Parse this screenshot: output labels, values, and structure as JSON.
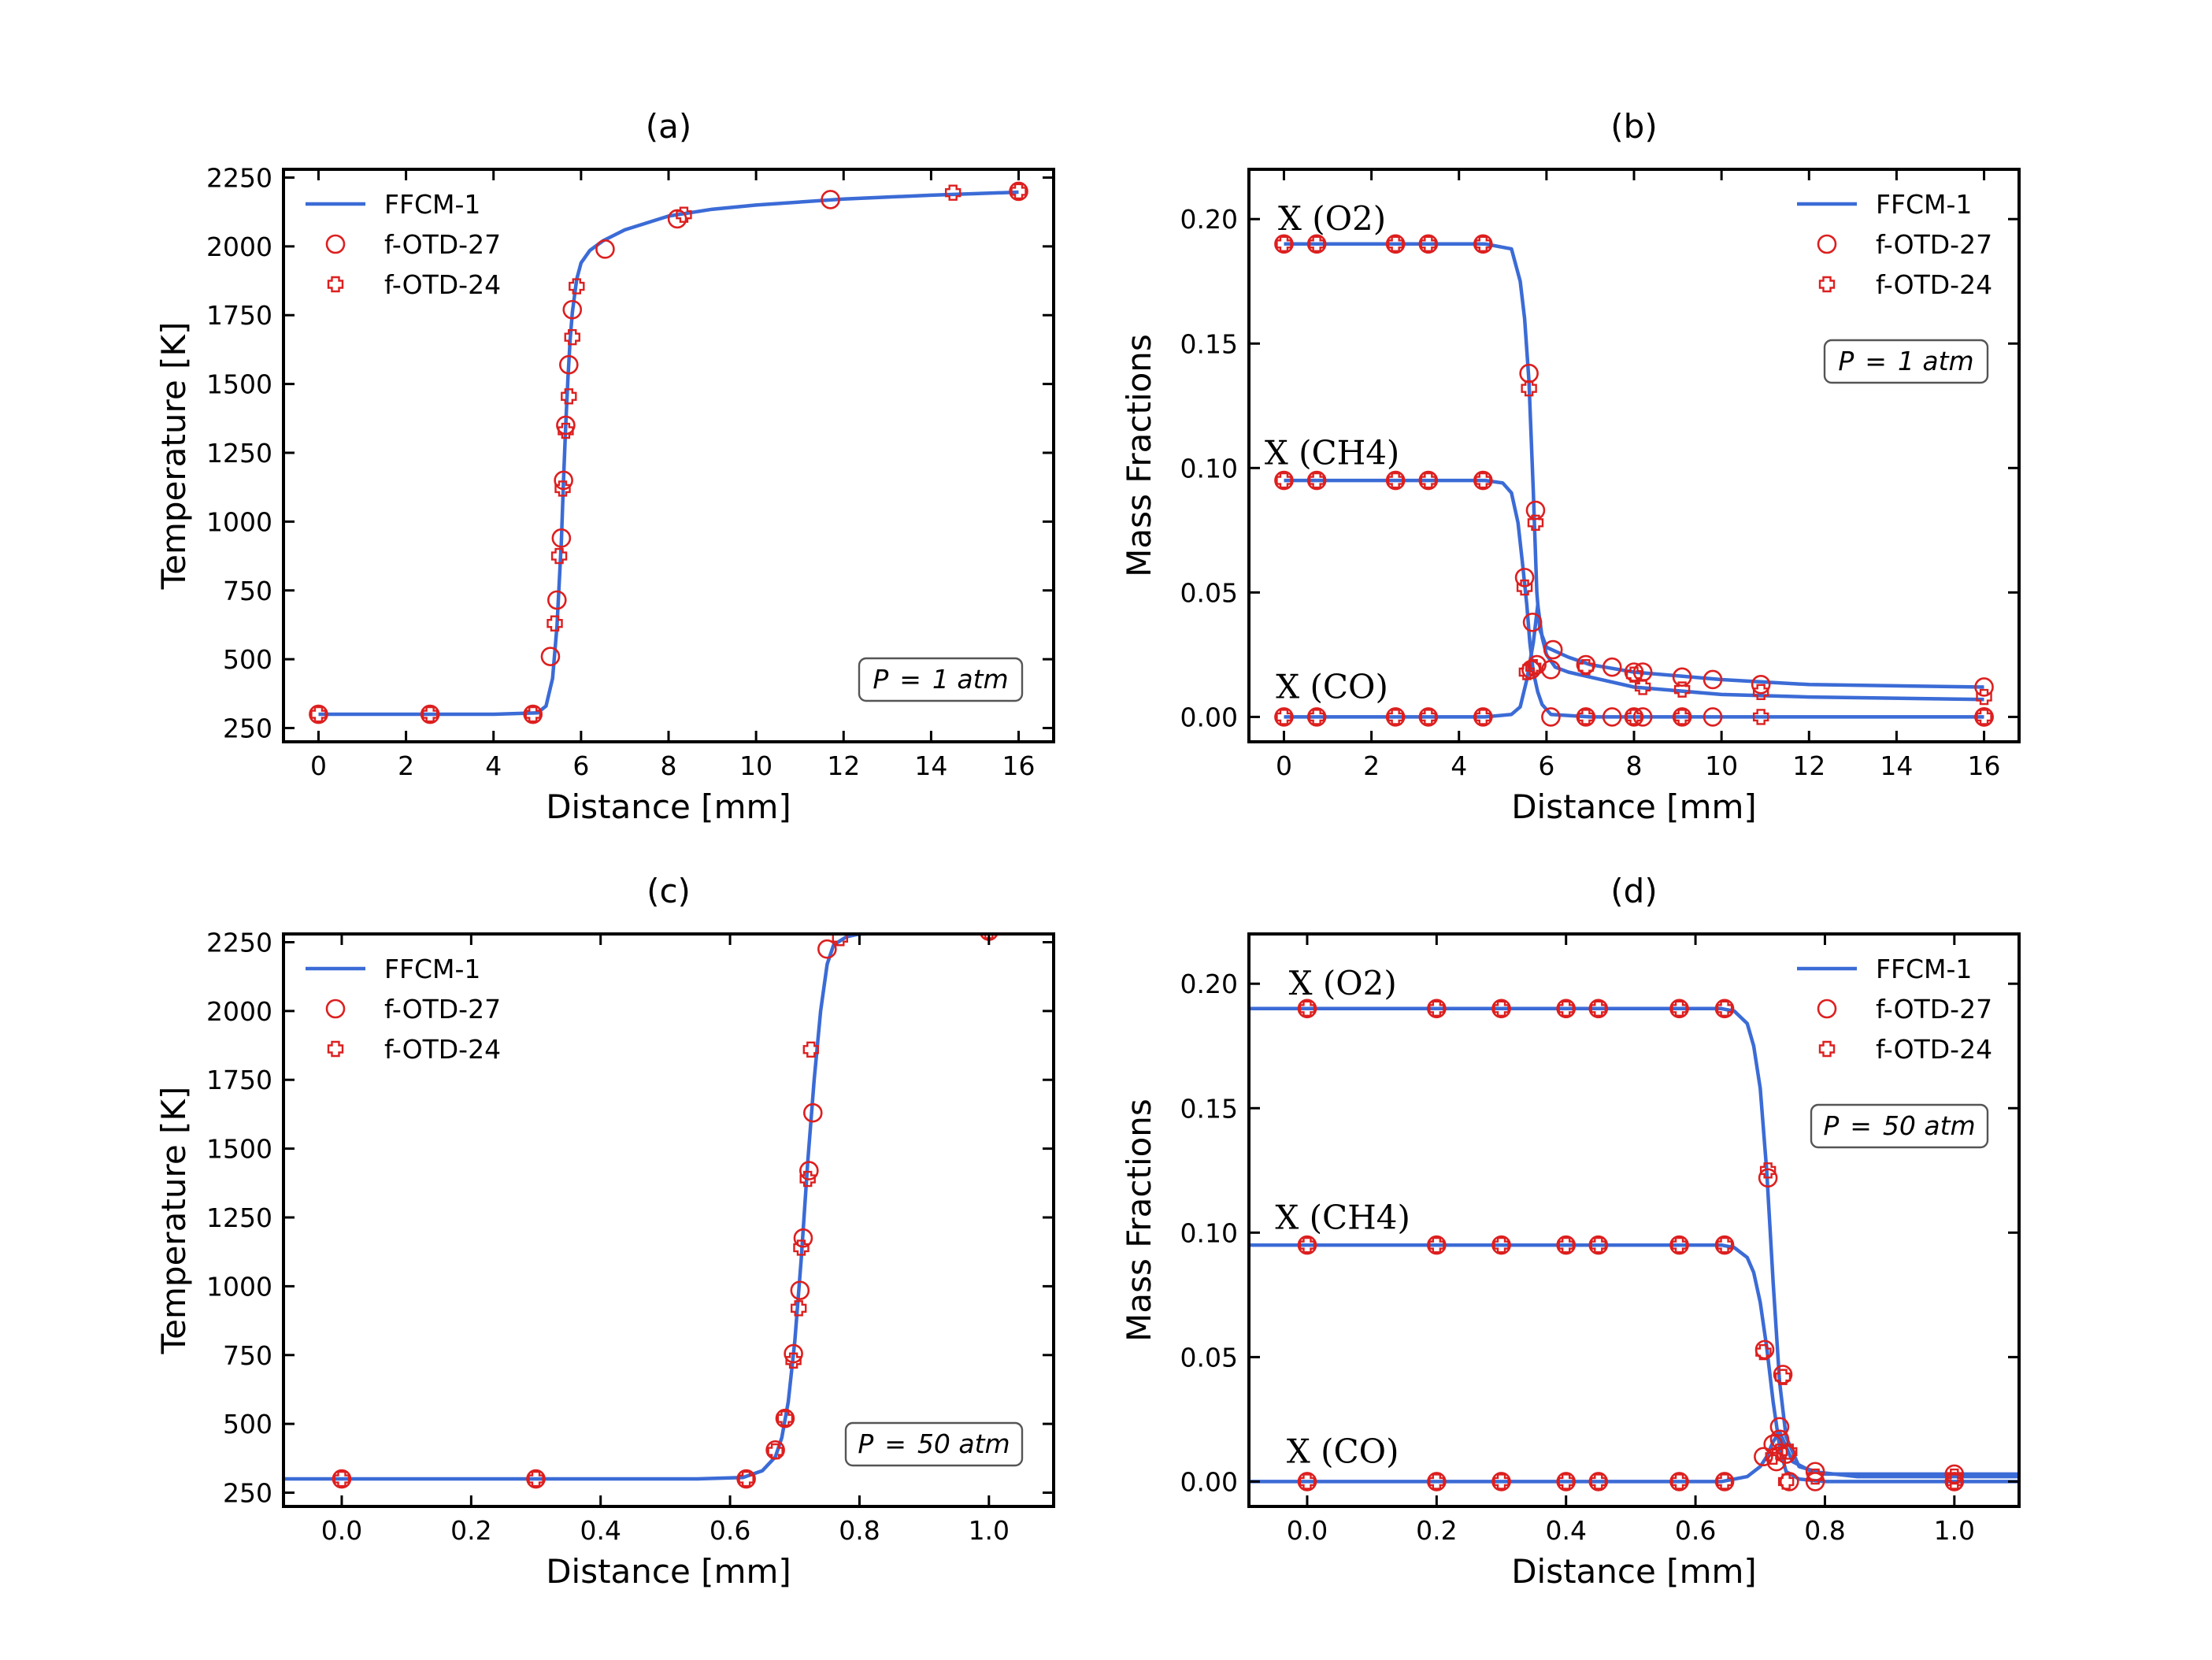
{
  "colors": {
    "model_line": "#3b6bd6",
    "marker": "#dd1f1f",
    "frame": "#000000"
  },
  "chart_data": [
    {
      "type": "line",
      "title": "(a)",
      "xlabel": "Distance [mm]",
      "ylabel": "Temperature [K]",
      "xlim": [
        -0.8,
        16.8
      ],
      "ylim": [
        200,
        2280
      ],
      "xticks": [
        0,
        2,
        4,
        6,
        8,
        10,
        12,
        14,
        16
      ],
      "xtick_labels": [
        "0",
        "2",
        "4",
        "6",
        "8",
        "10",
        "12",
        "14",
        "16"
      ],
      "yticks": [
        250,
        500,
        750,
        1000,
        1250,
        1500,
        1750,
        2000,
        2250
      ],
      "ytick_labels": [
        "250",
        "500",
        "750",
        "1000",
        "1250",
        "1500",
        "1750",
        "2000",
        "2250"
      ],
      "legend": {
        "position": "top-left",
        "entries": [
          "FFCM-1",
          "f-OTD-27",
          "f-OTD-24"
        ]
      },
      "annotation": {
        "position": "bottom-right",
        "prefix": "P",
        "eq": "=",
        "value": "1 atm"
      },
      "curve": {
        "name": "FFCM-1",
        "x": [
          0,
          2,
          4,
          5,
          5.2,
          5.35,
          5.45,
          5.55,
          5.6,
          5.65,
          5.7,
          5.75,
          5.8,
          5.9,
          6.0,
          6.2,
          6.5,
          7.0,
          8.0,
          9.0,
          10.0,
          12.0,
          14.0,
          16.0
        ],
        "y": [
          300,
          300,
          300,
          305,
          330,
          430,
          620,
          930,
          1150,
          1350,
          1520,
          1660,
          1760,
          1880,
          1940,
          1985,
          2020,
          2060,
          2110,
          2135,
          2150,
          2172,
          2186,
          2197
        ]
      },
      "markers": [
        {
          "name": "f-OTD-27",
          "symbol": "circle",
          "x": [
            0,
            2.55,
            4.9,
            5.3,
            5.45,
            5.55,
            5.6,
            5.65,
            5.72,
            5.8,
            6.55,
            8.2,
            11.7,
            16
          ],
          "y": [
            300,
            300,
            300,
            510,
            715,
            940,
            1150,
            1350,
            1570,
            1770,
            1990,
            2100,
            2170,
            2200
          ]
        },
        {
          "name": "f-OTD-24",
          "symbol": "plus",
          "x": [
            0,
            2.55,
            4.9,
            5.4,
            5.5,
            5.58,
            5.65,
            5.72,
            5.8,
            5.9,
            8.35,
            14.5,
            16
          ],
          "y": [
            300,
            300,
            300,
            630,
            875,
            1120,
            1330,
            1455,
            1670,
            1855,
            2115,
            2195,
            2200
          ]
        }
      ]
    },
    {
      "type": "line",
      "title": "(b)",
      "xlabel": "Distance [mm]",
      "ylabel": "Mass Fractions",
      "xlim": [
        -0.8,
        16.8
      ],
      "ylim": [
        -0.01,
        0.22
      ],
      "xticks": [
        0,
        2,
        4,
        6,
        8,
        10,
        12,
        14,
        16
      ],
      "xtick_labels": [
        "0",
        "2",
        "4",
        "6",
        "8",
        "10",
        "12",
        "14",
        "16"
      ],
      "yticks": [
        0.0,
        0.05,
        0.1,
        0.15,
        0.2
      ],
      "ytick_labels": [
        "0.00",
        "0.05",
        "0.10",
        "0.15",
        "0.20"
      ],
      "legend": {
        "position": "top-right",
        "entries": [
          "FFCM-1",
          "f-OTD-27",
          "f-OTD-24"
        ]
      },
      "annotation": {
        "position": "upper-right",
        "prefix": "P",
        "eq": "=",
        "value": "1 atm"
      },
      "species_labels": [
        {
          "text": "X (O2)",
          "x": 1.1,
          "y": 0.2
        },
        {
          "text": "X (CH4)",
          "x": 1.1,
          "y": 0.106
        },
        {
          "text": "X (CO)",
          "x": 1.1,
          "y": 0.012
        }
      ],
      "curves": [
        {
          "name": "O2",
          "x": [
            0,
            4.6,
            5.2,
            5.4,
            5.5,
            5.6,
            5.7,
            5.78,
            5.85,
            6.0,
            6.5,
            7.0,
            8.0,
            10.0,
            12.0,
            16.0
          ],
          "y": [
            0.19,
            0.19,
            0.188,
            0.175,
            0.16,
            0.135,
            0.09,
            0.05,
            0.035,
            0.028,
            0.024,
            0.021,
            0.018,
            0.015,
            0.013,
            0.012
          ]
        },
        {
          "name": "CH4",
          "x": [
            0,
            4.6,
            5.0,
            5.2,
            5.35,
            5.45,
            5.55,
            5.62,
            5.7,
            5.8,
            5.9,
            6.1,
            7.0,
            8.0,
            10.0,
            12.0,
            16.0
          ],
          "y": [
            0.095,
            0.095,
            0.094,
            0.09,
            0.078,
            0.062,
            0.045,
            0.03,
            0.018,
            0.01,
            0.005,
            0.001,
            0.0,
            0.0,
            0.0,
            0.0,
            0.0
          ]
        },
        {
          "name": "CO",
          "x": [
            0,
            4.6,
            5.2,
            5.4,
            5.55,
            5.7,
            5.8,
            5.9,
            6.0,
            6.2,
            6.5,
            7.0,
            8.0,
            10.0,
            12.0,
            16.0
          ],
          "y": [
            0.0,
            0.0,
            0.001,
            0.004,
            0.015,
            0.03,
            0.045,
            0.032,
            0.025,
            0.02,
            0.018,
            0.016,
            0.012,
            0.009,
            0.008,
            0.007
          ]
        }
      ],
      "markers": [
        {
          "name": "f-OTD-27",
          "symbol": "circle",
          "x": [
            0,
            0.75,
            2.55,
            3.3,
            4.55,
            5.6,
            5.75,
            0,
            0.75,
            2.55,
            3.3,
            4.55,
            5.5,
            5.68,
            6.15,
            6.9,
            7.5,
            8.0,
            8.2,
            9.1,
            9.8,
            10.9,
            16,
            0,
            0.75,
            2.55,
            3.3,
            4.55,
            5.65,
            5.78,
            6.1,
            16,
            6.1,
            6.9,
            7.5,
            8.0,
            8.2,
            9.1,
            9.8,
            16
          ],
          "y": [
            0.19,
            0.19,
            0.19,
            0.19,
            0.19,
            0.138,
            0.083,
            0.095,
            0.095,
            0.095,
            0.095,
            0.095,
            0.056,
            0.038,
            0.027,
            0.021,
            0.02,
            0.018,
            0.018,
            0.016,
            0.015,
            0.013,
            0.012,
            0.0,
            0.0,
            0.0,
            0.0,
            0.0,
            0.019,
            0.021,
            0.0,
            0.0,
            0.019,
            0.0,
            0.0,
            0.0,
            0.0,
            0.0,
            0.0,
            0.0
          ]
        },
        {
          "name": "f-OTD-24",
          "symbol": "plus",
          "x": [
            0,
            0.75,
            2.55,
            3.3,
            4.55,
            5.6,
            5.75,
            0,
            0.75,
            2.55,
            3.3,
            4.55,
            5.5,
            6.9,
            8.0,
            9.1,
            10.9,
            16,
            0,
            0.75,
            2.55,
            3.3,
            4.55,
            5.55,
            5.7,
            6.9,
            8.0,
            8.2,
            9.1,
            10.9,
            16
          ],
          "y": [
            0.19,
            0.19,
            0.19,
            0.19,
            0.19,
            0.132,
            0.078,
            0.095,
            0.095,
            0.095,
            0.095,
            0.095,
            0.052,
            0.0,
            0.0,
            0.0,
            0.0,
            0.0,
            0.0,
            0.0,
            0.0,
            0.0,
            0.0,
            0.018,
            0.02,
            0.02,
            0.017,
            0.012,
            0.011,
            0.01,
            0.008
          ]
        }
      ]
    },
    {
      "type": "line",
      "title": "(c)",
      "xlabel": "Distance [mm]",
      "ylabel": "Temperature [K]",
      "xlim": [
        -0.09,
        1.1
      ],
      "ylim": [
        200,
        2280
      ],
      "xticks": [
        0.0,
        0.2,
        0.4,
        0.6,
        0.8,
        1.0
      ],
      "xtick_labels": [
        "0.0",
        "0.2",
        "0.4",
        "0.6",
        "0.8",
        "1.0"
      ],
      "yticks": [
        250,
        500,
        750,
        1000,
        1250,
        1500,
        1750,
        2000,
        2250
      ],
      "ytick_labels": [
        "250",
        "500",
        "750",
        "1000",
        "1250",
        "1500",
        "1750",
        "2000",
        "2250"
      ],
      "legend": {
        "position": "top-left",
        "entries": [
          "FFCM-1",
          "f-OTD-27",
          "f-OTD-24"
        ]
      },
      "annotation": {
        "position": "bottom-right",
        "prefix": "P",
        "eq": "=",
        "value": "50 atm"
      },
      "curve": {
        "name": "FFCM-1",
        "x": [
          -0.09,
          0.55,
          0.62,
          0.65,
          0.67,
          0.68,
          0.69,
          0.7,
          0.71,
          0.72,
          0.73,
          0.74,
          0.75,
          0.76,
          0.78,
          0.8,
          0.85,
          0.9,
          1.0,
          1.1
        ],
        "y": [
          300,
          300,
          305,
          330,
          380,
          450,
          580,
          800,
          1100,
          1450,
          1750,
          2000,
          2170,
          2240,
          2270,
          2280,
          2283,
          2284,
          2285,
          2285
        ]
      },
      "markers": [
        {
          "name": "f-OTD-27",
          "symbol": "circle",
          "x": [
            0,
            0.3,
            0.625,
            0.67,
            0.685,
            0.698,
            0.708,
            0.713,
            0.722,
            0.728,
            0.75,
            1.0
          ],
          "y": [
            300,
            300,
            300,
            405,
            520,
            755,
            985,
            1175,
            1420,
            1630,
            2225,
            2290
          ]
        },
        {
          "name": "f-OTD-24",
          "symbol": "plus",
          "x": [
            0,
            0.3,
            0.625,
            0.67,
            0.685,
            0.698,
            0.706,
            0.71,
            0.72,
            0.725,
            0.77,
            1.0
          ],
          "y": [
            300,
            300,
            300,
            400,
            520,
            730,
            920,
            1140,
            1390,
            1860,
            2265,
            2290
          ]
        }
      ]
    },
    {
      "type": "line",
      "title": "(d)",
      "xlabel": "Distance [mm]",
      "ylabel": "Mass Fractions",
      "xlim": [
        -0.09,
        1.1
      ],
      "ylim": [
        -0.01,
        0.22
      ],
      "xticks": [
        0.0,
        0.2,
        0.4,
        0.6,
        0.8,
        1.0
      ],
      "xtick_labels": [
        "0.0",
        "0.2",
        "0.4",
        "0.6",
        "0.8",
        "1.0"
      ],
      "yticks": [
        0.0,
        0.05,
        0.1,
        0.15,
        0.2
      ],
      "ytick_labels": [
        "0.00",
        "0.05",
        "0.10",
        "0.15",
        "0.20"
      ],
      "legend": {
        "position": "top-right",
        "entries": [
          "FFCM-1",
          "f-OTD-27",
          "f-OTD-24"
        ]
      },
      "annotation": {
        "position": "upper-right",
        "prefix": "P",
        "eq": "=",
        "value": "50 atm"
      },
      "species_labels": [
        {
          "text": "X (O2)",
          "x": 0.055,
          "y": 0.2
        },
        {
          "text": "X (CH4)",
          "x": 0.055,
          "y": 0.106
        },
        {
          "text": "X (CO)",
          "x": 0.055,
          "y": 0.012
        }
      ],
      "curves": [
        {
          "name": "O2",
          "x": [
            -0.09,
            0.64,
            0.66,
            0.68,
            0.69,
            0.7,
            0.71,
            0.72,
            0.73,
            0.74,
            0.76,
            0.8,
            1.0,
            1.1
          ],
          "y": [
            0.19,
            0.19,
            0.189,
            0.184,
            0.175,
            0.158,
            0.125,
            0.08,
            0.04,
            0.018,
            0.006,
            0.003,
            0.003,
            0.003
          ]
        },
        {
          "name": "CH4",
          "x": [
            -0.09,
            0.64,
            0.66,
            0.68,
            0.69,
            0.7,
            0.71,
            0.72,
            0.73,
            0.74,
            0.76,
            0.8,
            1.1
          ],
          "y": [
            0.095,
            0.095,
            0.094,
            0.09,
            0.084,
            0.072,
            0.054,
            0.032,
            0.014,
            0.004,
            0.001,
            0.0,
            0.0
          ]
        },
        {
          "name": "CO",
          "x": [
            -0.09,
            0.64,
            0.68,
            0.7,
            0.71,
            0.72,
            0.73,
            0.74,
            0.75,
            0.78,
            0.85,
            1.0,
            1.1
          ],
          "y": [
            0.0,
            0.0,
            0.002,
            0.006,
            0.01,
            0.016,
            0.02,
            0.014,
            0.008,
            0.004,
            0.002,
            0.002,
            0.002
          ]
        }
      ],
      "markers": [
        {
          "name": "f-OTD-27",
          "symbol": "circle",
          "x": [
            0,
            0.2,
            0.3,
            0.4,
            0.45,
            0.575,
            0.645,
            0.712,
            0.735,
            0,
            0.2,
            0.3,
            0.4,
            0.45,
            0.575,
            0.645,
            0.707,
            0.73,
            0.74,
            0.785,
            1.0,
            0,
            0.2,
            0.3,
            0.4,
            0.45,
            0.575,
            0.645,
            0.705,
            0.72,
            0.725,
            0.73,
            0.745,
            0.785,
            1.0
          ],
          "y": [
            0.19,
            0.19,
            0.19,
            0.19,
            0.19,
            0.19,
            0.19,
            0.122,
            0.043,
            0.095,
            0.095,
            0.095,
            0.095,
            0.095,
            0.095,
            0.095,
            0.053,
            0.022,
            0.011,
            0.004,
            0.003,
            0.0,
            0.0,
            0.0,
            0.0,
            0.0,
            0.0,
            0.0,
            0.01,
            0.015,
            0.008,
            0.017,
            0.0,
            0.0,
            0.0
          ]
        },
        {
          "name": "f-OTD-24",
          "symbol": "plus",
          "x": [
            0,
            0.2,
            0.3,
            0.4,
            0.45,
            0.575,
            0.645,
            0.712,
            0.735,
            0,
            0.2,
            0.3,
            0.4,
            0.45,
            0.575,
            0.645,
            0.705,
            0.73,
            0.745,
            0.785,
            1.0,
            0,
            0.2,
            0.3,
            0.4,
            0.45,
            0.575,
            0.645,
            0.72,
            0.74,
            1.0
          ],
          "y": [
            0.19,
            0.19,
            0.19,
            0.19,
            0.19,
            0.19,
            0.19,
            0.125,
            0.042,
            0.095,
            0.095,
            0.095,
            0.095,
            0.095,
            0.095,
            0.095,
            0.052,
            0.012,
            0.012,
            0.002,
            0.002,
            0.0,
            0.0,
            0.0,
            0.0,
            0.0,
            0.0,
            0.0,
            0.01,
            0.0,
            0.0
          ]
        }
      ]
    }
  ]
}
